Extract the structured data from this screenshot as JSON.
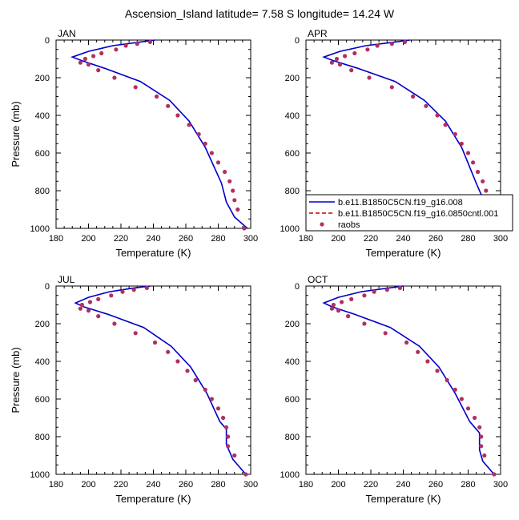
{
  "figure": {
    "title": "Ascension_Island  latitude= 7.58 S longitude= 14.24 W"
  },
  "legend": {
    "entries": [
      {
        "label": "b.e11.B1850C5CN.f19_g16.008",
        "color": "#0000cc",
        "style": "solid"
      },
      {
        "label": "b.e11.B1850C5CN.f19_g16.0850cntl.001",
        "color": "#cc0000",
        "style": "dashed"
      },
      {
        "label": "raobs",
        "color": "#b03060",
        "style": "marker"
      }
    ]
  },
  "chart_data": [
    {
      "type": "line",
      "panel_label": "JAN",
      "xlabel": "Temperature (K)",
      "ylabel": "Pressure (mb)",
      "xlim": [
        180,
        300
      ],
      "ylim": [
        0,
        1000
      ],
      "y_inverted": true,
      "x_ticks": [
        180,
        200,
        220,
        240,
        260,
        280,
        300
      ],
      "y_ticks": [
        0,
        200,
        400,
        600,
        800,
        1000
      ],
      "series": [
        {
          "name": "b.e11.B1850C5CN.f19_g16.008",
          "kind": "line",
          "color": "#0000cc",
          "x": [
            241,
            232,
            215,
            200,
            190,
            196,
            210,
            232,
            250,
            262,
            272,
            282,
            285,
            290,
            298
          ],
          "y": [
            0,
            10,
            30,
            60,
            90,
            110,
            150,
            220,
            320,
            430,
            570,
            760,
            860,
            940,
            1000
          ]
        },
        {
          "name": "b.e11.B1850C5CN.f19_g16.0850cntl.001",
          "kind": "line",
          "color": "#cc0000",
          "x": [
            241,
            232,
            215,
            200,
            190,
            196,
            210,
            232,
            250,
            262,
            272,
            282,
            285,
            290,
            298
          ],
          "y": [
            0,
            10,
            30,
            60,
            90,
            110,
            150,
            220,
            320,
            430,
            570,
            760,
            860,
            940,
            1000
          ]
        },
        {
          "name": "raobs",
          "kind": "marker",
          "color": "#b03060",
          "x": [
            238,
            230,
            223,
            217,
            208,
            203,
            198,
            195,
            200,
            206,
            216,
            229,
            242,
            249,
            255,
            262,
            268,
            272,
            276,
            280,
            284,
            287,
            289,
            290,
            292,
            296
          ],
          "y": [
            10,
            20,
            30,
            50,
            70,
            85,
            100,
            120,
            130,
            160,
            200,
            250,
            300,
            350,
            400,
            450,
            500,
            550,
            600,
            650,
            700,
            750,
            800,
            850,
            900,
            1000
          ]
        }
      ]
    },
    {
      "type": "line",
      "panel_label": "APR",
      "xlabel": "Temperature (K)",
      "ylabel": "",
      "xlim": [
        180,
        300
      ],
      "ylim": [
        0,
        1000
      ],
      "y_inverted": true,
      "x_ticks": [
        180,
        200,
        220,
        240,
        260,
        280,
        300
      ],
      "y_ticks": [
        0,
        200,
        400,
        600,
        800,
        1000
      ],
      "series": [
        {
          "name": "b.e11.B1850C5CN.f19_g16.008",
          "kind": "line",
          "color": "#0000cc",
          "x": [
            244,
            235,
            217,
            201,
            191,
            197,
            212,
            235,
            253,
            266,
            276,
            285,
            290,
            294,
            300
          ],
          "y": [
            0,
            10,
            30,
            60,
            90,
            110,
            150,
            220,
            320,
            430,
            570,
            760,
            860,
            940,
            1000
          ]
        },
        {
          "name": "b.e11.B1850C5CN.f19_g16.0850cntl.001",
          "kind": "line",
          "color": "#cc0000",
          "x": [
            244,
            235,
            217,
            201,
            191,
            197,
            212,
            235,
            253,
            266,
            276,
            285,
            290,
            294,
            300
          ],
          "y": [
            0,
            10,
            30,
            60,
            90,
            110,
            150,
            220,
            320,
            430,
            570,
            760,
            860,
            940,
            1000
          ]
        },
        {
          "name": "raobs",
          "kind": "marker",
          "color": "#b03060",
          "x": [
            241,
            233,
            224,
            218,
            210,
            204,
            199,
            196,
            201,
            208,
            219,
            233,
            246,
            254,
            261,
            266,
            272,
            276,
            280,
            283,
            286,
            289,
            291,
            293,
            295,
            300
          ],
          "y": [
            10,
            20,
            30,
            50,
            70,
            85,
            100,
            120,
            130,
            160,
            200,
            250,
            300,
            350,
            400,
            450,
            500,
            550,
            600,
            650,
            700,
            750,
            800,
            850,
            900,
            1000
          ]
        }
      ]
    },
    {
      "type": "line",
      "panel_label": "JUL",
      "xlabel": "Temperature (K)",
      "ylabel": "Pressure (mb)",
      "xlim": [
        180,
        300
      ],
      "ylim": [
        0,
        1000
      ],
      "y_inverted": true,
      "x_ticks": [
        180,
        200,
        220,
        240,
        260,
        280,
        300
      ],
      "y_ticks": [
        0,
        200,
        400,
        600,
        800,
        1000
      ],
      "series": [
        {
          "name": "b.e11.B1850C5CN.f19_g16.008",
          "kind": "line",
          "color": "#0000cc",
          "x": [
            238,
            228,
            213,
            200,
            192,
            197,
            212,
            234,
            251,
            263,
            273,
            281,
            285,
            285,
            289,
            297
          ],
          "y": [
            0,
            10,
            30,
            60,
            90,
            110,
            150,
            220,
            320,
            430,
            570,
            720,
            760,
            840,
            920,
            1000
          ]
        },
        {
          "name": "b.e11.B1850C5CN.f19_g16.0850cntl.001",
          "kind": "line",
          "color": "#cc0000",
          "x": [
            238,
            228,
            213,
            200,
            192,
            197,
            212,
            234,
            251,
            263,
            273,
            281,
            285,
            285,
            289,
            297
          ],
          "y": [
            0,
            10,
            30,
            60,
            90,
            110,
            150,
            220,
            320,
            430,
            570,
            720,
            760,
            840,
            920,
            1000
          ]
        },
        {
          "name": "raobs",
          "kind": "marker",
          "color": "#b03060",
          "x": [
            236,
            228,
            221,
            214,
            206,
            201,
            196,
            195,
            200,
            206,
            216,
            229,
            241,
            249,
            255,
            261,
            266,
            272,
            276,
            280,
            283,
            285,
            286,
            286,
            290,
            297
          ],
          "y": [
            10,
            20,
            30,
            50,
            70,
            85,
            100,
            120,
            130,
            160,
            200,
            250,
            300,
            350,
            400,
            450,
            500,
            550,
            600,
            650,
            700,
            750,
            800,
            850,
            900,
            1000
          ]
        }
      ]
    },
    {
      "type": "line",
      "panel_label": "OCT",
      "xlabel": "Temperature (K)",
      "ylabel": "",
      "xlim": [
        180,
        300
      ],
      "ylim": [
        0,
        1000
      ],
      "y_inverted": true,
      "x_ticks": [
        180,
        200,
        220,
        240,
        260,
        280,
        300
      ],
      "y_ticks": [
        0,
        200,
        400,
        600,
        800,
        1000
      ],
      "series": [
        {
          "name": "b.e11.B1850C5CN.f19_g16.008",
          "kind": "line",
          "color": "#0000cc",
          "x": [
            240,
            231,
            214,
            200,
            191,
            196,
            210,
            232,
            250,
            262,
            272,
            281,
            287,
            287,
            289,
            296
          ],
          "y": [
            0,
            10,
            30,
            60,
            90,
            110,
            150,
            220,
            320,
            430,
            570,
            720,
            780,
            870,
            930,
            1000
          ]
        },
        {
          "name": "b.e11.B1850C5CN.f19_g16.0850cntl.001",
          "kind": "line",
          "color": "#cc0000",
          "x": [
            240,
            231,
            214,
            200,
            191,
            196,
            210,
            232,
            250,
            262,
            272,
            281,
            287,
            287,
            289,
            296
          ],
          "y": [
            0,
            10,
            30,
            60,
            90,
            110,
            150,
            220,
            320,
            430,
            570,
            720,
            780,
            870,
            930,
            1000
          ]
        },
        {
          "name": "raobs",
          "kind": "marker",
          "color": "#b03060",
          "x": [
            238,
            230,
            222,
            216,
            208,
            202,
            197,
            196,
            200,
            206,
            216,
            229,
            242,
            249,
            255,
            261,
            267,
            272,
            276,
            280,
            284,
            287,
            288,
            288,
            290,
            296
          ],
          "y": [
            10,
            20,
            30,
            50,
            70,
            85,
            100,
            120,
            130,
            160,
            200,
            250,
            300,
            350,
            400,
            450,
            500,
            550,
            600,
            650,
            700,
            750,
            800,
            850,
            900,
            1000
          ]
        }
      ]
    }
  ]
}
